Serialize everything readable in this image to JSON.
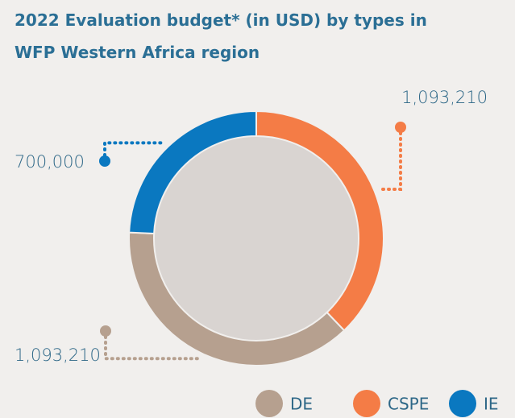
{
  "chart_data": {
    "type": "donut",
    "title_lines": [
      "2022 Evaluation budget* (in USD) by types in",
      "WFP Western Africa region"
    ],
    "categories": [
      "CSPE",
      "DE",
      "IE"
    ],
    "values": [
      1093210,
      1093210,
      700000
    ],
    "value_labels": [
      "1,093,210",
      "1,093,210",
      "700,000"
    ],
    "colors": [
      "#f47c46",
      "#b6a08f",
      "#0a78c0"
    ],
    "legend_order": [
      1,
      0,
      2
    ]
  }
}
